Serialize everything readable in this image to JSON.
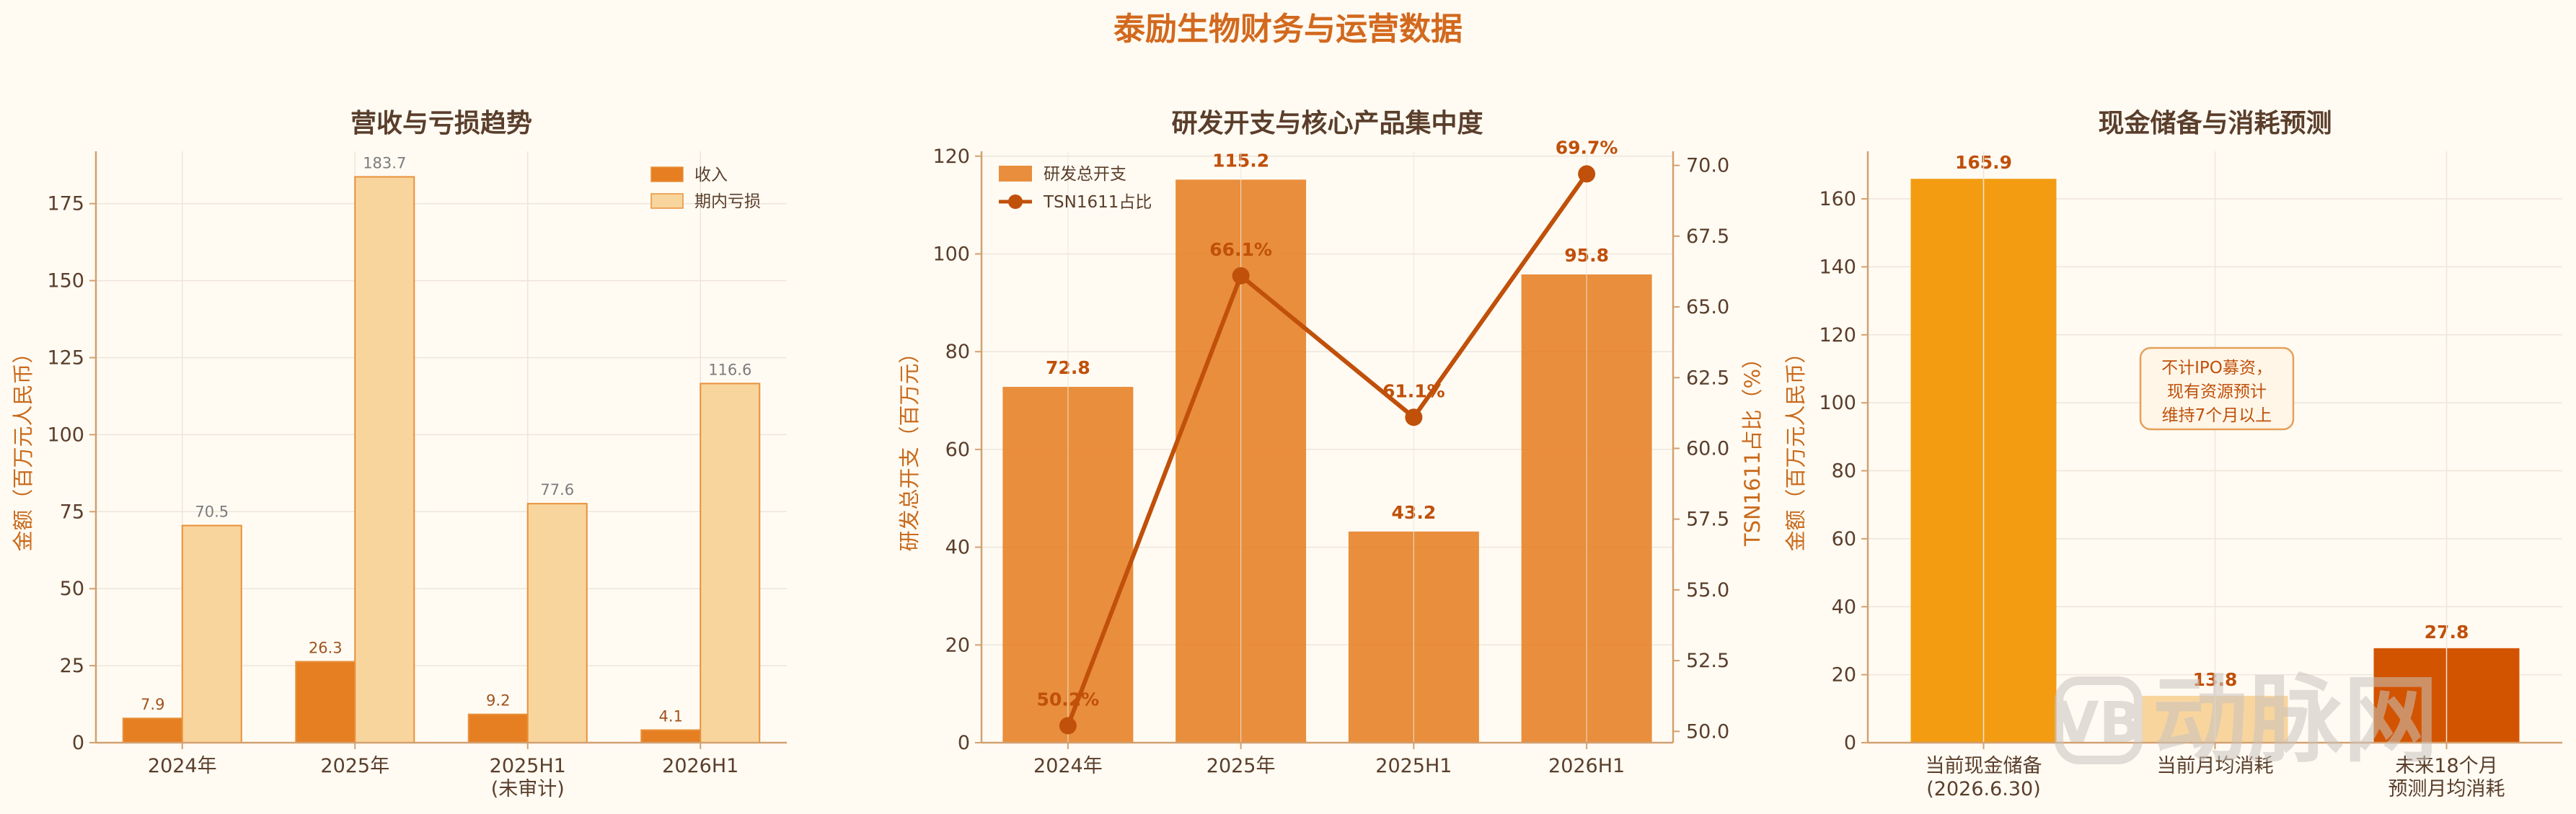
{
  "suptitle": "泰励生物财务与运营数据",
  "colors": {
    "background": "#fffbf3",
    "revenue": "#e67e22",
    "loss": "#f9d59e",
    "rd_bar": "#e67e22",
    "ratio_line": "#c0500a",
    "cash_reserve": "#f39c12",
    "monthly_burn": "#f9d59e",
    "forecast_burn": "#d35400",
    "axis": "#d2a070",
    "grid": "#ede5da"
  },
  "chart_data": [
    {
      "type": "bar",
      "title": "营收与亏损趋势",
      "ylabel": "金额（百万元人民币）",
      "categories": [
        "2024年",
        "2025年",
        "2025H1\n(未审计)",
        "2026H1"
      ],
      "ylim": [
        0,
        192
      ],
      "yticks": [
        0,
        25,
        50,
        75,
        100,
        125,
        150,
        175
      ],
      "grid": true,
      "legend_position": "top-right",
      "series": [
        {
          "name": "收入",
          "values": [
            7.9,
            26.3,
            9.2,
            4.1
          ],
          "labels": [
            "7.9",
            "26.3",
            "9.2",
            "4.1"
          ]
        },
        {
          "name": "期内亏损",
          "values": [
            70.5,
            183.7,
            77.6,
            116.6
          ],
          "labels": [
            "70.5",
            "183.7",
            "77.6",
            "116.6"
          ]
        }
      ]
    },
    {
      "type": "bar",
      "title": "研发开支与核心产品集中度",
      "ylabel": "研发总开支（百万元）",
      "ylabel_right": "TSN1611占比（%）",
      "categories": [
        "2024年",
        "2025年",
        "2025H1",
        "2026H1"
      ],
      "ylim": [
        0,
        121
      ],
      "yticks": [
        0,
        20,
        40,
        60,
        80,
        100,
        120
      ],
      "ylim_right": [
        49.6,
        70.5
      ],
      "yticks_right": [
        "50.0",
        "52.5",
        "55.0",
        "57.5",
        "60.0",
        "62.5",
        "65.0",
        "67.5",
        "70.0"
      ],
      "grid": true,
      "legend_position": "top-left",
      "series": [
        {
          "name": "研发总开支",
          "type": "bar",
          "values": [
            72.8,
            115.2,
            43.2,
            95.8
          ],
          "labels": [
            "72.8",
            "115.2",
            "43.2",
            "95.8"
          ]
        },
        {
          "name": "TSN1611占比",
          "type": "line",
          "values": [
            50.2,
            66.1,
            61.1,
            69.7
          ],
          "labels": [
            "50.2%",
            "66.1%",
            "61.1%",
            "69.7%"
          ]
        }
      ]
    },
    {
      "type": "bar",
      "title": "现金储备与消耗预测",
      "ylabel": "金额（百万元人民币）",
      "categories": [
        "当前现金储备\n(2026.6.30)",
        "当前月均消耗",
        "未来18个月\n预测月均消耗"
      ],
      "values": [
        165.9,
        13.8,
        27.8
      ],
      "labels": [
        "165.9",
        "13.8",
        "27.8"
      ],
      "ylim": [
        0,
        174
      ],
      "yticks": [
        0,
        20,
        40,
        60,
        80,
        100,
        120,
        140,
        160
      ],
      "grid": true,
      "annotation": [
        "不计IPO募资，",
        "现有资源预计",
        "维持7个月以上"
      ]
    }
  ],
  "watermark": {
    "text": "动脉网",
    "badge": "VB"
  }
}
